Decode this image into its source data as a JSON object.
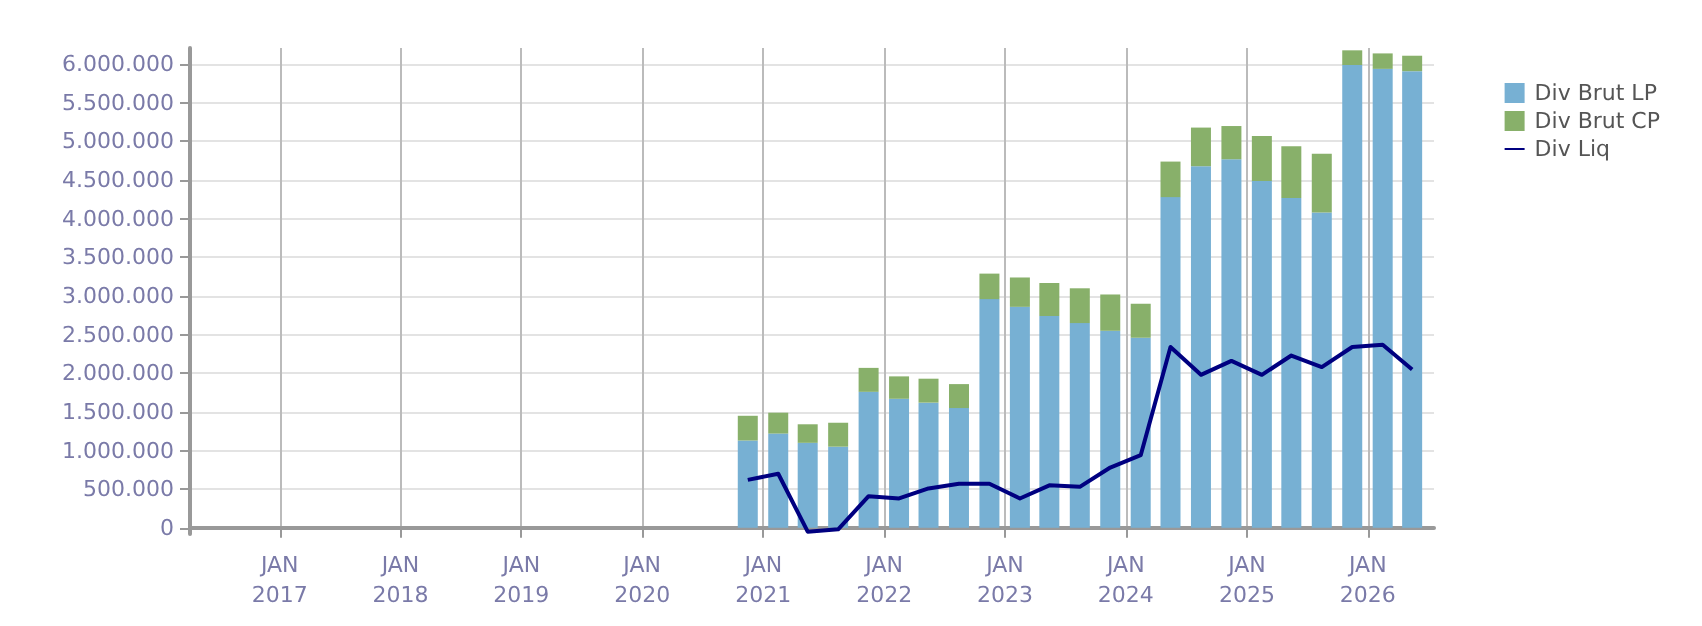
{
  "chart_data": {
    "type": "bar",
    "stacked": true,
    "grid": true,
    "legend": "top right",
    "xlim": [
      "2016-04-05",
      "2026-07-20"
    ],
    "ylim": [
      -80000,
      6210000
    ],
    "xticks": [
      {
        "value": "2017-01-01",
        "label": "JAN\n2017"
      },
      {
        "value": "2018-01-01",
        "label": "JAN\n2018"
      },
      {
        "value": "2019-01-01",
        "label": "JAN\n2019"
      },
      {
        "value": "2020-01-01",
        "label": "JAN\n2020"
      },
      {
        "value": "2021-01-01",
        "label": "JAN\n2021"
      },
      {
        "value": "2022-01-01",
        "label": "JAN\n2022"
      },
      {
        "value": "2023-01-01",
        "label": "JAN\n2023"
      },
      {
        "value": "2024-01-01",
        "label": "JAN\n2024"
      },
      {
        "value": "2025-01-01",
        "label": "JAN\n2025"
      },
      {
        "value": "2026-01-01",
        "label": "JAN\n2026"
      }
    ],
    "yticks": [
      {
        "value": 0,
        "label": "0"
      },
      {
        "value": 500000,
        "label": "500.000"
      },
      {
        "value": 1000000,
        "label": "1.000.000"
      },
      {
        "value": 1500000,
        "label": "1.500.000"
      },
      {
        "value": 2000000,
        "label": "2.000.000"
      },
      {
        "value": 2500000,
        "label": "2.500.000"
      },
      {
        "value": 3000000,
        "label": "3.000.000"
      },
      {
        "value": 3500000,
        "label": "3.500.000"
      },
      {
        "value": 4000000,
        "label": "4.000.000"
      },
      {
        "value": 4500000,
        "label": "4.500.000"
      },
      {
        "value": 5000000,
        "label": "5.000.000"
      },
      {
        "value": 5500000,
        "label": "5.500.000"
      },
      {
        "value": 6000000,
        "label": "6.000.000"
      }
    ],
    "x": [
      "2020-11-15",
      "2021-02-15",
      "2021-05-15",
      "2021-08-15",
      "2021-11-15",
      "2022-02-15",
      "2022-05-15",
      "2022-08-15",
      "2022-11-15",
      "2023-02-15",
      "2023-05-15",
      "2023-08-15",
      "2023-11-15",
      "2024-02-15",
      "2024-05-15",
      "2024-08-15",
      "2024-11-15",
      "2025-02-15",
      "2025-05-15",
      "2025-08-15",
      "2025-11-15",
      "2026-02-15",
      "2026-05-15"
    ],
    "series": [
      {
        "name": "Div Brut LP",
        "color": "#77b0d3",
        "values": [
          1130000,
          1220000,
          1100000,
          1050000,
          1760000,
          1670000,
          1620000,
          1550000,
          2960000,
          2860000,
          2740000,
          2650000,
          2550000,
          2460000,
          4280000,
          4680000,
          4770000,
          4490000,
          4270000,
          4080000,
          5990000,
          5940000,
          5910000
        ]
      },
      {
        "name": "Div Brut CP",
        "color": "#88b06a",
        "values": [
          320000,
          270000,
          240000,
          310000,
          310000,
          290000,
          310000,
          310000,
          330000,
          380000,
          430000,
          450000,
          470000,
          440000,
          460000,
          500000,
          430000,
          580000,
          670000,
          760000,
          190000,
          200000,
          200000
        ]
      },
      {
        "name": "Div Liq",
        "type": "line",
        "color": "#000080",
        "values": [
          620000,
          700000,
          -50000,
          -20000,
          410000,
          380000,
          510000,
          570000,
          570000,
          380000,
          550000,
          530000,
          780000,
          940000,
          2340000,
          1980000,
          2160000,
          1980000,
          2230000,
          2080000,
          2340000,
          2370000,
          2050000
        ]
      }
    ]
  }
}
